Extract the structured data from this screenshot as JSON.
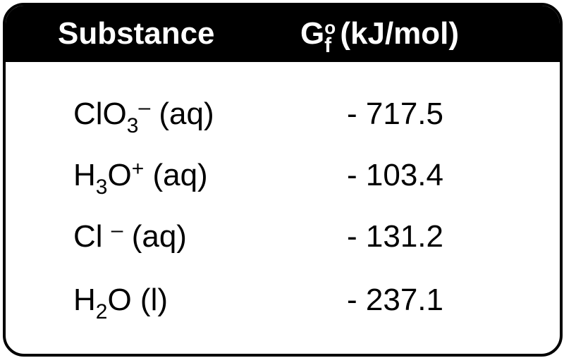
{
  "table": {
    "header": [
      [
        {
          "text": "Substance"
        }
      ],
      [
        {
          "text": "G"
        },
        {
          "text": "o",
          "pos": "sup"
        },
        {
          "text": "f",
          "pos": "sub"
        },
        {
          "text": " (kJ/mol)"
        }
      ]
    ],
    "rows": [
      [
        [
          {
            "text": "ClO"
          },
          {
            "text": "3",
            "pos": "sub"
          },
          {
            "text": "–",
            "pos": "sup"
          },
          {
            "text": " (aq)"
          }
        ],
        [
          {
            "text": "- 717.5"
          }
        ]
      ],
      [
        [
          {
            "text": "H"
          },
          {
            "text": "3",
            "pos": "sub"
          },
          {
            "text": "O"
          },
          {
            "text": "+",
            "pos": "sup"
          },
          {
            "text": " (aq)"
          }
        ],
        [
          {
            "text": "- 103.4"
          }
        ]
      ],
      [
        [
          {
            "text": "Cl "
          },
          {
            "text": "–",
            "pos": "sup"
          },
          {
            "text": " (aq)"
          }
        ],
        [
          {
            "text": "- 131.2"
          }
        ]
      ],
      [
        [
          {
            "text": "H"
          },
          {
            "text": "2",
            "pos": "sub"
          },
          {
            "text": "O (l)"
          }
        ],
        [
          {
            "text": "- 237.1"
          }
        ]
      ]
    ]
  }
}
